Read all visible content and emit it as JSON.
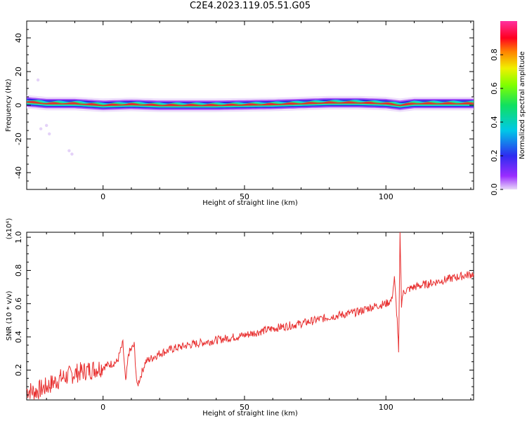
{
  "title": "C2E4.2023.119.05.51.G05",
  "colors": {
    "snr_line": "#e83030",
    "axis": "#000000",
    "background": "#ffffff"
  },
  "chart_data": [
    {
      "type": "heatmap",
      "xlabel": "Height of straight line (km)",
      "ylabel": "Frequency (Hz)",
      "xlim": [
        -27,
        131
      ],
      "ylim": [
        -50,
        50
      ],
      "x_ticks": [
        0,
        50,
        100
      ],
      "y_ticks": [
        -40,
        -20,
        0,
        20,
        40
      ],
      "colorbar": {
        "label": "Normalized spectral amplitude",
        "ticks": [
          "0.0",
          "0.2",
          "0.4",
          "0.6",
          "0.8"
        ],
        "range": [
          0,
          1
        ],
        "colormap": "rainbow (violet-blue-cyan-green-yellow-red-magenta)"
      },
      "dominant_frequency_track": {
        "x": [
          -27,
          -20,
          -10,
          0,
          10,
          20,
          40,
          60,
          70,
          80,
          90,
          100,
          105,
          110,
          131
        ],
        "y": [
          2,
          1,
          1,
          0,
          0.5,
          0,
          0,
          0.5,
          1,
          1.5,
          1.5,
          1,
          0,
          1,
          1
        ]
      }
    },
    {
      "type": "line",
      "xlabel": "Height of straight line (km)",
      "ylabel": "SNR (10 * v/v)",
      "y_multiplier": "(x10⁴)",
      "xlim": [
        -27,
        131
      ],
      "ylim": [
        0.02,
        1.03
      ],
      "x_ticks": [
        0,
        50,
        100
      ],
      "y_ticks": [
        "0.2",
        "0.4",
        "0.6",
        "0.8",
        "1.0"
      ],
      "series": [
        {
          "x": [
            -27,
            -24,
            -20,
            -15,
            -10,
            -5,
            0,
            5,
            7,
            8,
            9,
            11,
            12,
            15,
            20,
            25,
            30,
            40,
            50,
            60,
            70,
            80,
            90,
            95,
            100,
            102,
            103,
            104,
            104.5,
            105,
            105.5,
            106,
            107,
            110,
            115,
            120,
            125,
            131
          ],
          "y": [
            0.08,
            0.07,
            0.1,
            0.15,
            0.18,
            0.2,
            0.22,
            0.25,
            0.36,
            0.12,
            0.3,
            0.35,
            0.1,
            0.25,
            0.3,
            0.33,
            0.35,
            0.38,
            0.41,
            0.45,
            0.48,
            0.52,
            0.55,
            0.58,
            0.6,
            0.62,
            0.75,
            0.5,
            0.3,
            1.03,
            0.6,
            0.66,
            0.68,
            0.7,
            0.72,
            0.74,
            0.76,
            0.78
          ]
        }
      ]
    }
  ]
}
